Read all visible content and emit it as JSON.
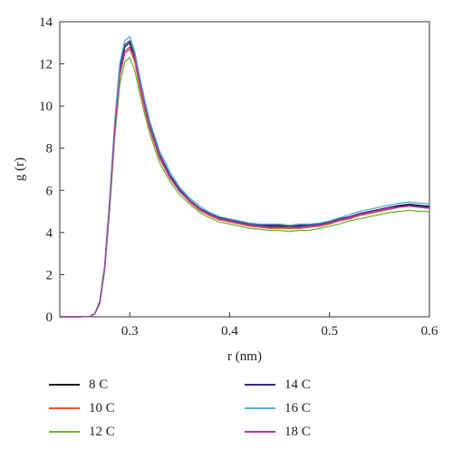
{
  "chart_data": {
    "type": "line",
    "xlabel": "r (nm)",
    "ylabel": "g (r)",
    "xlim": [
      0.23,
      0.6
    ],
    "ylim": [
      0,
      14
    ],
    "xticks": [
      0.3,
      0.4,
      0.5,
      0.6
    ],
    "yticks": [
      0,
      2,
      4,
      6,
      8,
      10,
      12,
      14
    ],
    "grid": false,
    "legend_position": "bottom",
    "x": [
      0.23,
      0.24,
      0.25,
      0.26,
      0.265,
      0.27,
      0.275,
      0.28,
      0.285,
      0.29,
      0.295,
      0.3,
      0.305,
      0.31,
      0.315,
      0.32,
      0.33,
      0.34,
      0.35,
      0.36,
      0.37,
      0.38,
      0.39,
      0.4,
      0.41,
      0.42,
      0.43,
      0.44,
      0.45,
      0.46,
      0.47,
      0.48,
      0.49,
      0.5,
      0.51,
      0.52,
      0.53,
      0.54,
      0.55,
      0.56,
      0.57,
      0.58,
      0.59,
      0.6
    ],
    "series": [
      {
        "name": "8 C",
        "color": "#1a1a1a",
        "values": [
          0,
          0,
          0,
          0.02,
          0.15,
          0.7,
          2.4,
          5.5,
          9.0,
          11.6,
          12.8,
          13.0,
          12.2,
          11.0,
          9.9,
          9.0,
          7.6,
          6.7,
          6.0,
          5.5,
          5.1,
          4.85,
          4.65,
          4.55,
          4.45,
          4.35,
          4.3,
          4.3,
          4.3,
          4.25,
          4.3,
          4.3,
          4.35,
          4.45,
          4.6,
          4.7,
          4.85,
          4.95,
          5.05,
          5.15,
          5.25,
          5.3,
          5.25,
          5.2
        ]
      },
      {
        "name": "10 C",
        "color": "#e8562a",
        "values": [
          0,
          0,
          0,
          0.02,
          0.14,
          0.65,
          2.3,
          5.3,
          8.8,
          11.4,
          12.5,
          12.7,
          12.1,
          10.9,
          9.8,
          8.9,
          7.5,
          6.6,
          5.95,
          5.45,
          5.05,
          4.8,
          4.6,
          4.5,
          4.4,
          4.3,
          4.25,
          4.2,
          4.2,
          4.2,
          4.2,
          4.25,
          4.3,
          4.4,
          4.55,
          4.65,
          4.8,
          4.9,
          5.0,
          5.1,
          5.2,
          5.25,
          5.2,
          5.15
        ]
      },
      {
        "name": "12 C",
        "color": "#6fb43a",
        "values": [
          0,
          0,
          0,
          0.02,
          0.12,
          0.6,
          2.2,
          5.1,
          8.5,
          11.0,
          12.1,
          12.3,
          11.7,
          10.6,
          9.6,
          8.7,
          7.3,
          6.45,
          5.8,
          5.35,
          4.95,
          4.7,
          4.5,
          4.4,
          4.3,
          4.2,
          4.15,
          4.1,
          4.1,
          4.05,
          4.1,
          4.1,
          4.2,
          4.3,
          4.4,
          4.55,
          4.65,
          4.75,
          4.85,
          4.95,
          5.0,
          5.05,
          5.0,
          5.0
        ]
      },
      {
        "name": "14 C",
        "color": "#3a2a8c",
        "values": [
          0,
          0,
          0,
          0.02,
          0.15,
          0.72,
          2.45,
          5.6,
          9.1,
          11.8,
          12.9,
          13.1,
          12.4,
          11.2,
          10.1,
          9.1,
          7.7,
          6.75,
          6.05,
          5.55,
          5.15,
          4.9,
          4.7,
          4.6,
          4.5,
          4.4,
          4.35,
          4.35,
          4.35,
          4.3,
          4.35,
          4.35,
          4.4,
          4.5,
          4.65,
          4.75,
          4.9,
          5.0,
          5.1,
          5.2,
          5.3,
          5.35,
          5.3,
          5.25
        ]
      },
      {
        "name": "16 C",
        "color": "#4fb0c6",
        "values": [
          0,
          0,
          0,
          0.02,
          0.16,
          0.75,
          2.5,
          5.7,
          9.3,
          12.0,
          13.1,
          13.3,
          12.6,
          11.4,
          10.3,
          9.3,
          7.85,
          6.9,
          6.15,
          5.65,
          5.25,
          4.95,
          4.75,
          4.65,
          4.55,
          4.45,
          4.4,
          4.4,
          4.4,
          4.35,
          4.4,
          4.4,
          4.45,
          4.55,
          4.7,
          4.85,
          5.0,
          5.1,
          5.2,
          5.3,
          5.4,
          5.45,
          5.4,
          5.35
        ]
      },
      {
        "name": "18 C",
        "color": "#b03aa8",
        "values": [
          0,
          0,
          0,
          0.02,
          0.14,
          0.68,
          2.35,
          5.4,
          8.9,
          11.5,
          12.6,
          12.8,
          12.3,
          11.1,
          10.0,
          9.0,
          7.6,
          6.65,
          5.95,
          5.5,
          5.1,
          4.85,
          4.65,
          4.55,
          4.45,
          4.35,
          4.3,
          4.25,
          4.25,
          4.25,
          4.25,
          4.3,
          4.35,
          4.45,
          4.6,
          4.7,
          4.85,
          4.95,
          5.05,
          5.15,
          5.2,
          5.25,
          5.2,
          5.15
        ]
      }
    ]
  }
}
